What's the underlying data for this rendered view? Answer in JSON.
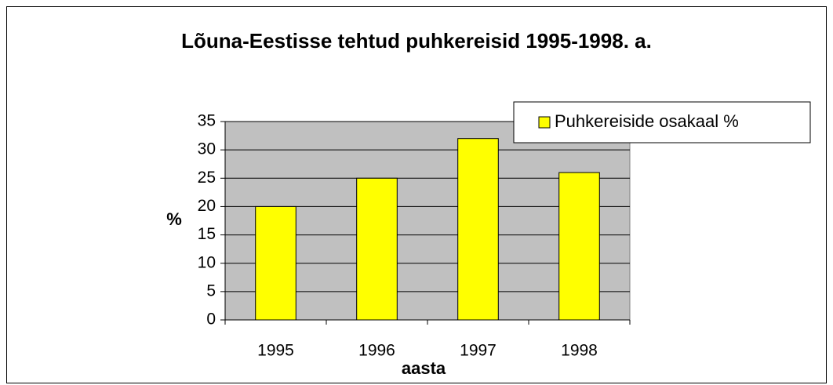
{
  "chart_data": {
    "type": "bar",
    "title": "Lõuna-Eestisse tehtud puhkereisid 1995-1998. a.",
    "x_label": "aasta",
    "y_label": "%",
    "categories": [
      "1995",
      "1996",
      "1997",
      "1998"
    ],
    "series": [
      {
        "name": "Puhkereiside osakaal %",
        "color": "#ffff00",
        "values": [
          20,
          25,
          32,
          26
        ]
      }
    ],
    "ylim": [
      0,
      35
    ],
    "yticks": [
      0,
      5,
      10,
      15,
      20,
      25,
      30,
      35
    ],
    "grid": true,
    "plot_background": "#c0c0c0",
    "legend": "top-right"
  }
}
